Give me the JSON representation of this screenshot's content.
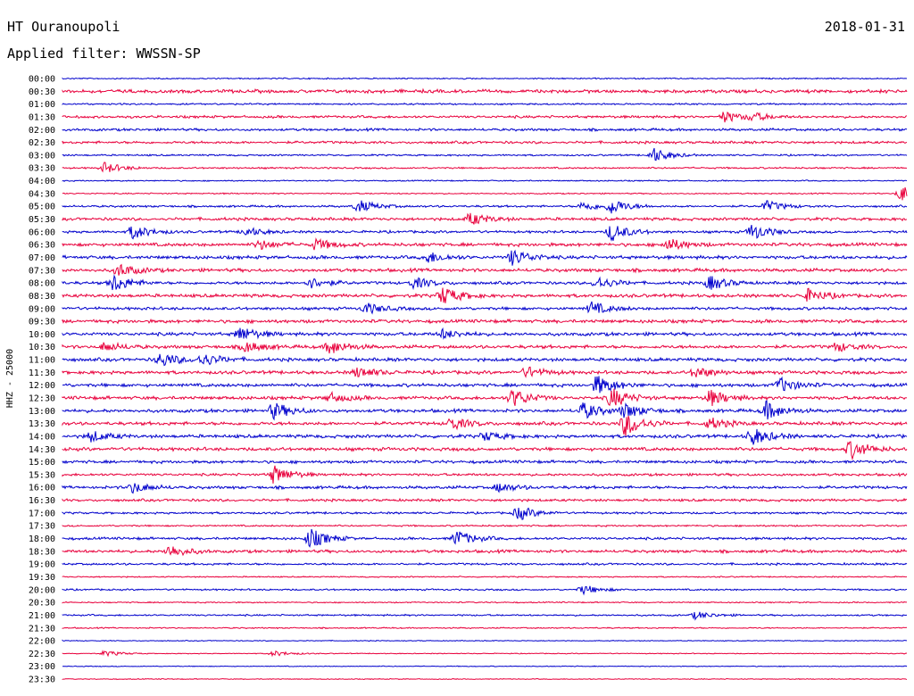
{
  "header": {
    "station": "HT Ouranoupoli",
    "date": "2018-01-31",
    "filter": "Applied filter: WWSSN-SP"
  },
  "chart_data": {
    "type": "line",
    "ylabel": "HHZ - 25000",
    "xlabel": "",
    "title": "HT Ouranoupoli",
    "grid": false,
    "legend": "none",
    "colors": [
      "#0000cc",
      "#e8003c"
    ],
    "tick_labels": [
      "00:00",
      "00:30",
      "01:00",
      "01:30",
      "02:00",
      "02:30",
      "03:00",
      "03:30",
      "04:00",
      "04:30",
      "05:00",
      "05:30",
      "06:00",
      "06:30",
      "07:00",
      "07:30",
      "08:00",
      "08:30",
      "09:00",
      "09:30",
      "10:00",
      "10:30",
      "11:00",
      "11:30",
      "12:00",
      "12:30",
      "13:00",
      "13:30",
      "14:00",
      "14:30",
      "15:00",
      "15:30",
      "16:00",
      "16:30",
      "17:00",
      "17:30",
      "18:00",
      "18:30",
      "19:00",
      "19:30",
      "20:00",
      "20:30",
      "21:00",
      "21:30",
      "22:00",
      "22:30",
      "23:00",
      "23:30"
    ],
    "trace_minutes": 30,
    "noise": [
      0.6,
      1.6,
      0.8,
      1.2,
      1.2,
      1.2,
      0.8,
      0.8,
      0.6,
      0.6,
      1.0,
      1.4,
      1.2,
      1.6,
      1.6,
      1.6,
      1.4,
      1.6,
      1.4,
      1.6,
      1.6,
      1.6,
      1.6,
      1.6,
      1.6,
      1.6,
      1.6,
      1.6,
      1.6,
      1.6,
      1.4,
      1.2,
      1.4,
      1.2,
      1.0,
      0.8,
      1.2,
      1.4,
      1.0,
      0.6,
      0.8,
      0.6,
      0.8,
      0.6,
      0.4,
      0.4,
      0.4,
      0.4
    ],
    "events": [
      {
        "trace": "01:30",
        "minute": 23.5,
        "amp": 6
      },
      {
        "trace": "01:30",
        "minute": 24.5,
        "amp": 4
      },
      {
        "trace": "03:00",
        "minute": 21.0,
        "amp": 8
      },
      {
        "trace": "03:30",
        "minute": 1.5,
        "amp": 6
      },
      {
        "trace": "04:30",
        "minute": 29.8,
        "amp": 9
      },
      {
        "trace": "05:00",
        "minute": 10.5,
        "amp": 7
      },
      {
        "trace": "05:00",
        "minute": 18.5,
        "amp": 5
      },
      {
        "trace": "05:00",
        "minute": 19.5,
        "amp": 8
      },
      {
        "trace": "05:00",
        "minute": 25.0,
        "amp": 6
      },
      {
        "trace": "05:30",
        "minute": 14.5,
        "amp": 7
      },
      {
        "trace": "06:00",
        "minute": 2.5,
        "amp": 8
      },
      {
        "trace": "06:00",
        "minute": 6.5,
        "amp": 5
      },
      {
        "trace": "06:00",
        "minute": 19.5,
        "amp": 10
      },
      {
        "trace": "06:00",
        "minute": 24.5,
        "amp": 9
      },
      {
        "trace": "06:30",
        "minute": 7.0,
        "amp": 5
      },
      {
        "trace": "06:30",
        "minute": 9.0,
        "amp": 6
      },
      {
        "trace": "06:30",
        "minute": 21.5,
        "amp": 7
      },
      {
        "trace": "07:00",
        "minute": 13.0,
        "amp": 6
      },
      {
        "trace": "07:00",
        "minute": 16.0,
        "amp": 9
      },
      {
        "trace": "07:30",
        "minute": 2.0,
        "amp": 7
      },
      {
        "trace": "08:00",
        "minute": 1.8,
        "amp": 10
      },
      {
        "trace": "08:00",
        "minute": 8.8,
        "amp": 6
      },
      {
        "trace": "08:00",
        "minute": 12.5,
        "amp": 6
      },
      {
        "trace": "08:00",
        "minute": 19.0,
        "amp": 7
      },
      {
        "trace": "08:00",
        "minute": 23.0,
        "amp": 8
      },
      {
        "trace": "08:30",
        "minute": 13.5,
        "amp": 10
      },
      {
        "trace": "08:30",
        "minute": 26.5,
        "amp": 7
      },
      {
        "trace": "09:00",
        "minute": 10.8,
        "amp": 6
      },
      {
        "trace": "09:00",
        "minute": 18.8,
        "amp": 7
      },
      {
        "trace": "10:00",
        "minute": 6.3,
        "amp": 8
      },
      {
        "trace": "10:00",
        "minute": 13.5,
        "amp": 5
      },
      {
        "trace": "10:30",
        "minute": 1.5,
        "amp": 5
      },
      {
        "trace": "10:30",
        "minute": 6.5,
        "amp": 6
      },
      {
        "trace": "10:30",
        "minute": 9.5,
        "amp": 8
      },
      {
        "trace": "10:30",
        "minute": 27.5,
        "amp": 5
      },
      {
        "trace": "11:00",
        "minute": 3.5,
        "amp": 8
      },
      {
        "trace": "11:00",
        "minute": 5.0,
        "amp": 7
      },
      {
        "trace": "11:30",
        "minute": 10.5,
        "amp": 6
      },
      {
        "trace": "11:30",
        "minute": 16.5,
        "amp": 6
      },
      {
        "trace": "11:30",
        "minute": 22.5,
        "amp": 6
      },
      {
        "trace": "12:00",
        "minute": 19.0,
        "amp": 11
      },
      {
        "trace": "12:00",
        "minute": 25.5,
        "amp": 8
      },
      {
        "trace": "12:30",
        "minute": 9.5,
        "amp": 5
      },
      {
        "trace": "12:30",
        "minute": 16.0,
        "amp": 10
      },
      {
        "trace": "12:30",
        "minute": 19.5,
        "amp": 11
      },
      {
        "trace": "12:30",
        "minute": 23.0,
        "amp": 9
      },
      {
        "trace": "13:00",
        "minute": 7.5,
        "amp": 9
      },
      {
        "trace": "13:00",
        "minute": 18.5,
        "amp": 9
      },
      {
        "trace": "13:00",
        "minute": 20.0,
        "amp": 8
      },
      {
        "trace": "13:00",
        "minute": 25.0,
        "amp": 10
      },
      {
        "trace": "13:30",
        "minute": 13.8,
        "amp": 7
      },
      {
        "trace": "13:30",
        "minute": 20.0,
        "amp": 14
      },
      {
        "trace": "13:30",
        "minute": 23.0,
        "amp": 6
      },
      {
        "trace": "14:00",
        "minute": 1.0,
        "amp": 6
      },
      {
        "trace": "14:00",
        "minute": 15.0,
        "amp": 5
      },
      {
        "trace": "14:00",
        "minute": 24.5,
        "amp": 10
      },
      {
        "trace": "14:30",
        "minute": 28.0,
        "amp": 10
      },
      {
        "trace": "15:30",
        "minute": 7.5,
        "amp": 10
      },
      {
        "trace": "16:00",
        "minute": 2.5,
        "amp": 6
      },
      {
        "trace": "16:00",
        "minute": 15.5,
        "amp": 5
      },
      {
        "trace": "17:00",
        "minute": 16.2,
        "amp": 8
      },
      {
        "trace": "18:00",
        "minute": 8.8,
        "amp": 11
      },
      {
        "trace": "18:00",
        "minute": 14.0,
        "amp": 9
      },
      {
        "trace": "18:30",
        "minute": 3.8,
        "amp": 7
      },
      {
        "trace": "20:00",
        "minute": 18.5,
        "amp": 5
      },
      {
        "trace": "21:00",
        "minute": 22.5,
        "amp": 4
      },
      {
        "trace": "22:30",
        "minute": 1.5,
        "amp": 3
      },
      {
        "trace": "22:30",
        "minute": 7.5,
        "amp": 3
      }
    ]
  }
}
